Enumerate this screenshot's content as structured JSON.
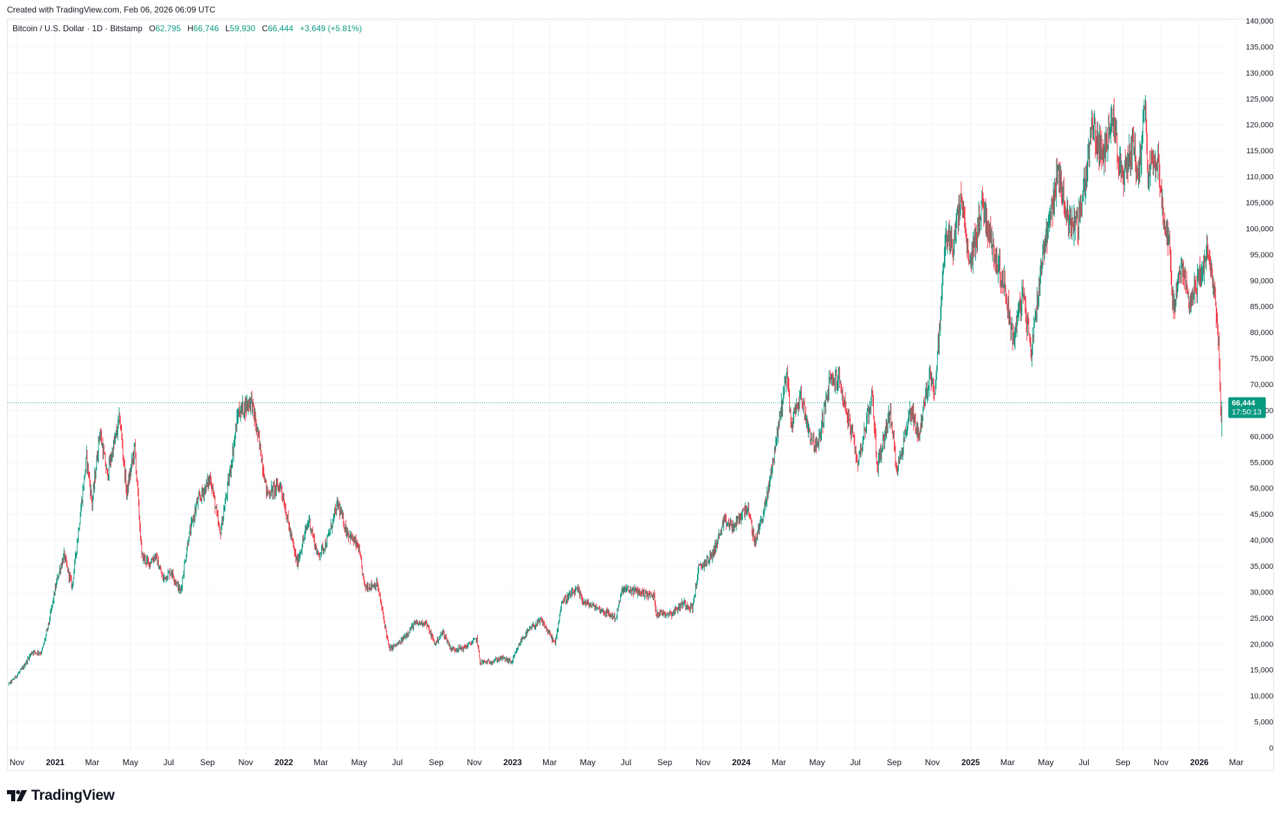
{
  "header": {
    "created_with": "Created with TradingView.com, Feb 06, 2026 06:09 UTC"
  },
  "legend": {
    "symbol": "Bitcoin / U.S. Dollar · 1D · Bitstamp",
    "open_label": "O",
    "open": "62,795",
    "high_label": "H",
    "high": "66,746",
    "low_label": "L",
    "low": "59,930",
    "close_label": "C",
    "close": "66,444",
    "change": "+3,649 (+5.81%)"
  },
  "price_tag": {
    "price": "66,444",
    "countdown": "17:50:13"
  },
  "branding": {
    "logo_text": "TradingView",
    "logo_icon": "tradingview-logo-icon"
  },
  "colors": {
    "up": "#089981",
    "down": "#f23645",
    "grid": "#f0f3fa",
    "axis_text": "#131722"
  },
  "chart_data": {
    "type": "candlestick",
    "ylim": [
      0,
      140000
    ],
    "y_ticks": [
      "0",
      "5,000",
      "10,000",
      "15,000",
      "20,000",
      "25,000",
      "30,000",
      "35,000",
      "40,000",
      "45,000",
      "50,000",
      "55,000",
      "60,000",
      "65,000",
      "70,000",
      "75,000",
      "80,000",
      "85,000",
      "90,000",
      "95,000",
      "100,000",
      "105,000",
      "110,000",
      "115,000",
      "120,000",
      "125,000",
      "130,000",
      "135,000",
      "140,000"
    ],
    "x_ticks": [
      {
        "label": "Nov",
        "date": "2020-11-01",
        "bold": false
      },
      {
        "label": "2021",
        "date": "2021-01-01",
        "bold": true
      },
      {
        "label": "Mar",
        "date": "2021-03-01",
        "bold": false
      },
      {
        "label": "May",
        "date": "2021-05-01",
        "bold": false
      },
      {
        "label": "Jul",
        "date": "2021-07-01",
        "bold": false
      },
      {
        "label": "Sep",
        "date": "2021-09-01",
        "bold": false
      },
      {
        "label": "Nov",
        "date": "2021-11-01",
        "bold": false
      },
      {
        "label": "2022",
        "date": "2022-01-01",
        "bold": true
      },
      {
        "label": "Mar",
        "date": "2022-03-01",
        "bold": false
      },
      {
        "label": "May",
        "date": "2022-05-01",
        "bold": false
      },
      {
        "label": "Jul",
        "date": "2022-07-01",
        "bold": false
      },
      {
        "label": "Sep",
        "date": "2022-09-01",
        "bold": false
      },
      {
        "label": "Nov",
        "date": "2022-11-01",
        "bold": false
      },
      {
        "label": "2023",
        "date": "2023-01-01",
        "bold": true
      },
      {
        "label": "Mar",
        "date": "2023-03-01",
        "bold": false
      },
      {
        "label": "May",
        "date": "2023-05-01",
        "bold": false
      },
      {
        "label": "Jul",
        "date": "2023-07-01",
        "bold": false
      },
      {
        "label": "Sep",
        "date": "2023-09-01",
        "bold": false
      },
      {
        "label": "Nov",
        "date": "2023-11-01",
        "bold": false
      },
      {
        "label": "2024",
        "date": "2024-01-01",
        "bold": true
      },
      {
        "label": "Mar",
        "date": "2024-03-01",
        "bold": false
      },
      {
        "label": "May",
        "date": "2024-05-01",
        "bold": false
      },
      {
        "label": "Jul",
        "date": "2024-07-01",
        "bold": false
      },
      {
        "label": "Sep",
        "date": "2024-09-01",
        "bold": false
      },
      {
        "label": "Nov",
        "date": "2024-11-01",
        "bold": false
      },
      {
        "label": "2025",
        "date": "2025-01-01",
        "bold": true
      },
      {
        "label": "Mar",
        "date": "2025-03-01",
        "bold": false
      },
      {
        "label": "May",
        "date": "2025-05-01",
        "bold": false
      },
      {
        "label": "Jul",
        "date": "2025-07-01",
        "bold": false
      },
      {
        "label": "Sep",
        "date": "2025-09-01",
        "bold": false
      },
      {
        "label": "Nov",
        "date": "2025-11-01",
        "bold": false
      },
      {
        "label": "2026",
        "date": "2026-01-01",
        "bold": true
      },
      {
        "label": "Mar",
        "date": "2026-03-01",
        "bold": false
      }
    ],
    "last_price": 66444,
    "close_series": [
      {
        "date": "2020-10-10",
        "close": 11300
      },
      {
        "date": "2020-10-25",
        "close": 13000
      },
      {
        "date": "2020-11-10",
        "close": 15300
      },
      {
        "date": "2020-11-25",
        "close": 18500
      },
      {
        "date": "2020-12-10",
        "close": 18300
      },
      {
        "date": "2020-12-20",
        "close": 23000
      },
      {
        "date": "2021-01-05",
        "close": 33000
      },
      {
        "date": "2021-01-15",
        "close": 37000
      },
      {
        "date": "2021-01-28",
        "close": 31000
      },
      {
        "date": "2021-02-10",
        "close": 45000
      },
      {
        "date": "2021-02-20",
        "close": 56000
      },
      {
        "date": "2021-03-01",
        "close": 47000
      },
      {
        "date": "2021-03-13",
        "close": 61000
      },
      {
        "date": "2021-03-25",
        "close": 52500
      },
      {
        "date": "2021-04-14",
        "close": 63500
      },
      {
        "date": "2021-04-25",
        "close": 49000
      },
      {
        "date": "2021-05-08",
        "close": 58000
      },
      {
        "date": "2021-05-19",
        "close": 37000
      },
      {
        "date": "2021-05-30",
        "close": 35500
      },
      {
        "date": "2021-06-10",
        "close": 37000
      },
      {
        "date": "2021-06-22",
        "close": 32500
      },
      {
        "date": "2021-07-05",
        "close": 34000
      },
      {
        "date": "2021-07-20",
        "close": 30000
      },
      {
        "date": "2021-08-01",
        "close": 40000
      },
      {
        "date": "2021-08-15",
        "close": 47000
      },
      {
        "date": "2021-09-06",
        "close": 52000
      },
      {
        "date": "2021-09-21",
        "close": 41000
      },
      {
        "date": "2021-10-05",
        "close": 51500
      },
      {
        "date": "2021-10-20",
        "close": 64500
      },
      {
        "date": "2021-11-10",
        "close": 67000
      },
      {
        "date": "2021-11-25",
        "close": 57000
      },
      {
        "date": "2021-12-05",
        "close": 49000
      },
      {
        "date": "2021-12-27",
        "close": 50500
      },
      {
        "date": "2022-01-10",
        "close": 42000
      },
      {
        "date": "2022-01-22",
        "close": 35500
      },
      {
        "date": "2022-02-10",
        "close": 44000
      },
      {
        "date": "2022-02-24",
        "close": 37000
      },
      {
        "date": "2022-03-10",
        "close": 39500
      },
      {
        "date": "2022-03-28",
        "close": 47000
      },
      {
        "date": "2022-04-10",
        "close": 42000
      },
      {
        "date": "2022-04-30",
        "close": 38500
      },
      {
        "date": "2022-05-10",
        "close": 31000
      },
      {
        "date": "2022-05-30",
        "close": 31500
      },
      {
        "date": "2022-06-13",
        "close": 22500
      },
      {
        "date": "2022-06-18",
        "close": 19000
      },
      {
        "date": "2022-07-05",
        "close": 20200
      },
      {
        "date": "2022-07-28",
        "close": 23800
      },
      {
        "date": "2022-08-15",
        "close": 24200
      },
      {
        "date": "2022-08-30",
        "close": 20000
      },
      {
        "date": "2022-09-12",
        "close": 22300
      },
      {
        "date": "2022-09-25",
        "close": 19000
      },
      {
        "date": "2022-10-15",
        "close": 19200
      },
      {
        "date": "2022-11-05",
        "close": 21000
      },
      {
        "date": "2022-11-10",
        "close": 16500
      },
      {
        "date": "2022-11-25",
        "close": 16500
      },
      {
        "date": "2022-12-15",
        "close": 17300
      },
      {
        "date": "2022-12-31",
        "close": 16500
      },
      {
        "date": "2023-01-15",
        "close": 20800
      },
      {
        "date": "2023-01-30",
        "close": 23000
      },
      {
        "date": "2023-02-16",
        "close": 24500
      },
      {
        "date": "2023-03-10",
        "close": 20000
      },
      {
        "date": "2023-03-20",
        "close": 28000
      },
      {
        "date": "2023-04-14",
        "close": 30400
      },
      {
        "date": "2023-04-25",
        "close": 28000
      },
      {
        "date": "2023-05-15",
        "close": 27000
      },
      {
        "date": "2023-06-15",
        "close": 25000
      },
      {
        "date": "2023-06-25",
        "close": 30500
      },
      {
        "date": "2023-07-15",
        "close": 30200
      },
      {
        "date": "2023-08-15",
        "close": 29200
      },
      {
        "date": "2023-08-18",
        "close": 26000
      },
      {
        "date": "2023-09-12",
        "close": 25900
      },
      {
        "date": "2023-10-01",
        "close": 27900
      },
      {
        "date": "2023-10-15",
        "close": 26900
      },
      {
        "date": "2023-10-25",
        "close": 34500
      },
      {
        "date": "2023-11-15",
        "close": 37000
      },
      {
        "date": "2023-12-05",
        "close": 43500
      },
      {
        "date": "2023-12-20",
        "close": 42500
      },
      {
        "date": "2024-01-10",
        "close": 46500
      },
      {
        "date": "2024-01-23",
        "close": 39500
      },
      {
        "date": "2024-02-10",
        "close": 47500
      },
      {
        "date": "2024-02-28",
        "close": 61000
      },
      {
        "date": "2024-03-14",
        "close": 73000
      },
      {
        "date": "2024-03-20",
        "close": 62000
      },
      {
        "date": "2024-04-05",
        "close": 68000
      },
      {
        "date": "2024-04-18",
        "close": 61000
      },
      {
        "date": "2024-05-01",
        "close": 57500
      },
      {
        "date": "2024-05-21",
        "close": 70500
      },
      {
        "date": "2024-06-05",
        "close": 71000
      },
      {
        "date": "2024-06-25",
        "close": 60500
      },
      {
        "date": "2024-07-05",
        "close": 55000
      },
      {
        "date": "2024-07-28",
        "close": 68000
      },
      {
        "date": "2024-08-05",
        "close": 54000
      },
      {
        "date": "2024-08-25",
        "close": 64500
      },
      {
        "date": "2024-09-06",
        "close": 53500
      },
      {
        "date": "2024-09-28",
        "close": 65500
      },
      {
        "date": "2024-10-10",
        "close": 60000
      },
      {
        "date": "2024-10-29",
        "close": 72500
      },
      {
        "date": "2024-11-05",
        "close": 68000
      },
      {
        "date": "2024-11-22",
        "close": 98500
      },
      {
        "date": "2024-12-05",
        "close": 97000
      },
      {
        "date": "2024-12-17",
        "close": 106000
      },
      {
        "date": "2024-12-30",
        "close": 92500
      },
      {
        "date": "2025-01-20",
        "close": 105000
      },
      {
        "date": "2025-02-03",
        "close": 97500
      },
      {
        "date": "2025-02-25",
        "close": 88500
      },
      {
        "date": "2025-03-10",
        "close": 78500
      },
      {
        "date": "2025-03-25",
        "close": 87500
      },
      {
        "date": "2025-04-08",
        "close": 76500
      },
      {
        "date": "2025-04-25",
        "close": 94500
      },
      {
        "date": "2025-05-10",
        "close": 104000
      },
      {
        "date": "2025-05-22",
        "close": 111000
      },
      {
        "date": "2025-06-05",
        "close": 101500
      },
      {
        "date": "2025-06-22",
        "close": 101000
      },
      {
        "date": "2025-07-03",
        "close": 109500
      },
      {
        "date": "2025-07-14",
        "close": 120000
      },
      {
        "date": "2025-08-02",
        "close": 113000
      },
      {
        "date": "2025-08-14",
        "close": 123500
      },
      {
        "date": "2025-08-31",
        "close": 108500
      },
      {
        "date": "2025-09-18",
        "close": 117000
      },
      {
        "date": "2025-09-26",
        "close": 109500
      },
      {
        "date": "2025-10-06",
        "close": 124500
      },
      {
        "date": "2025-10-11",
        "close": 111500
      },
      {
        "date": "2025-10-27",
        "close": 114500
      },
      {
        "date": "2025-11-04",
        "close": 102000
      },
      {
        "date": "2025-11-13",
        "close": 98500
      },
      {
        "date": "2025-11-21",
        "close": 84000
      },
      {
        "date": "2025-12-03",
        "close": 92500
      },
      {
        "date": "2025-12-18",
        "close": 86000
      },
      {
        "date": "2026-01-05",
        "close": 92000
      },
      {
        "date": "2026-01-14",
        "close": 95500
      },
      {
        "date": "2026-01-25",
        "close": 88000
      },
      {
        "date": "2026-02-01",
        "close": 77500
      },
      {
        "date": "2026-02-05",
        "close": 62795
      },
      {
        "date": "2026-02-06",
        "close": 66444
      }
    ]
  }
}
